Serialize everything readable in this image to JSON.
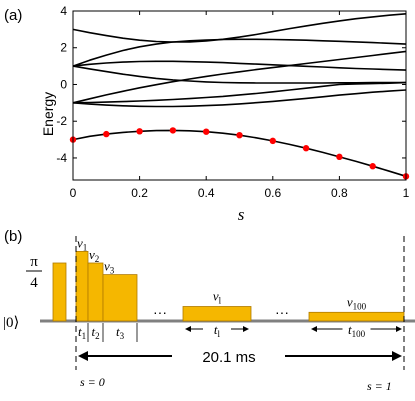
{
  "panel_a": {
    "label": "(a)",
    "chart_data": {
      "type": "line",
      "xlabel": "s",
      "ylabel": "Energy",
      "xlim": [
        0,
        1
      ],
      "ylim": [
        -5.2,
        4
      ],
      "xticks": [
        0,
        0.2,
        0.4,
        0.6,
        0.8,
        1
      ],
      "xtick_labels": [
        "0",
        "0.2",
        "0.4",
        "0.6",
        "0.8",
        "1"
      ],
      "yticks": [
        -4,
        -2,
        0,
        2,
        4
      ],
      "ytick_labels": [
        "-4",
        "-2",
        "0",
        "2",
        "4"
      ],
      "grid": false,
      "line_color": "#000000",
      "marker_color": "#ff0000",
      "x": [
        0,
        0.05,
        0.1,
        0.15,
        0.2,
        0.25,
        0.3,
        0.35,
        0.4,
        0.45,
        0.5,
        0.55,
        0.6,
        0.65,
        0.7,
        0.75,
        0.8,
        0.85,
        0.9,
        0.95,
        1
      ],
      "series": [
        {
          "values": [
            3.0,
            2.82,
            2.66,
            2.52,
            2.41,
            2.34,
            2.31,
            2.32,
            2.37,
            2.46,
            2.58,
            2.72,
            2.88,
            3.04,
            3.19,
            3.33,
            3.46,
            3.58,
            3.68,
            3.77,
            3.85
          ]
        },
        {
          "values": [
            1.0,
            1.32,
            1.6,
            1.85,
            2.05,
            2.2,
            2.31,
            2.38,
            2.42,
            2.45,
            2.46,
            2.46,
            2.45,
            2.43,
            2.41,
            2.38,
            2.35,
            2.32,
            2.28,
            2.24,
            2.2
          ]
        },
        {
          "values": [
            1.0,
            1.1,
            1.17,
            1.22,
            1.25,
            1.26,
            1.26,
            1.24,
            1.22,
            1.19,
            1.15,
            1.11,
            1.07,
            1.03,
            0.99,
            0.95,
            0.91,
            0.87,
            0.84,
            0.81,
            0.78
          ]
        },
        {
          "values": [
            1.0,
            0.85,
            0.7,
            0.56,
            0.44,
            0.33,
            0.25,
            0.19,
            0.14,
            0.11,
            0.09,
            0.08,
            0.08,
            0.08,
            0.08,
            0.08,
            0.09,
            0.09,
            0.1,
            0.1,
            0.1
          ]
        },
        {
          "values": [
            -1.0,
            -0.78,
            -0.57,
            -0.37,
            -0.18,
            -0.01,
            0.15,
            0.3,
            0.44,
            0.57,
            0.69,
            0.81,
            0.92,
            1.03,
            1.14,
            1.25,
            1.36,
            1.47,
            1.58,
            1.69,
            1.8
          ]
        },
        {
          "values": [
            -1.0,
            -0.98,
            -0.96,
            -0.93,
            -0.9,
            -0.86,
            -0.82,
            -0.77,
            -0.71,
            -0.65,
            -0.57,
            -0.49,
            -0.4,
            -0.3,
            -0.2,
            -0.1,
            0.0,
            0.03,
            0.05,
            0.07,
            0.1
          ]
        },
        {
          "values": [
            -1.0,
            -1.07,
            -1.12,
            -1.16,
            -1.19,
            -1.2,
            -1.2,
            -1.18,
            -1.15,
            -1.11,
            -1.06,
            -0.99,
            -0.92,
            -0.84,
            -0.76,
            -0.67,
            -0.58,
            -0.5,
            -0.42,
            -0.36,
            -0.3
          ]
        },
        {
          "values": [
            -3.0,
            -2.82,
            -2.7,
            -2.61,
            -2.55,
            -2.51,
            -2.5,
            -2.52,
            -2.57,
            -2.65,
            -2.76,
            -2.9,
            -3.07,
            -3.26,
            -3.47,
            -3.7,
            -3.94,
            -4.19,
            -4.45,
            -4.72,
            -5.0
          ]
        }
      ],
      "markers": {
        "x": [
          0,
          0.1,
          0.2,
          0.3,
          0.4,
          0.5,
          0.6,
          0.7,
          0.8,
          0.9,
          1
        ],
        "y": [
          -3.0,
          -2.7,
          -2.55,
          -2.5,
          -2.57,
          -2.76,
          -3.07,
          -3.47,
          -3.94,
          -4.45,
          -5.0
        ]
      }
    }
  },
  "panel_b": {
    "label": "(b)",
    "pi_label": "π",
    "four_label": "4",
    "ket_label": "|0⟩",
    "bar_color": "#f5b700",
    "bar_stroke": "#b07a00",
    "baseline_color": "#808080",
    "ref_level": 1.0,
    "pulses": [
      {
        "amp_label": "v",
        "amp_sub": "1",
        "dur_label": "t",
        "dur_sub": "1",
        "level": 1.2
      },
      {
        "amp_label": "v",
        "amp_sub": "2",
        "dur_label": "t",
        "dur_sub": "2",
        "level": 1.0
      },
      {
        "amp_label": "v",
        "amp_sub": "3",
        "dur_label": "t",
        "dur_sub": "3",
        "level": 0.8
      },
      {
        "amp_label": "v",
        "amp_sub": "l",
        "dur_label": "t",
        "dur_sub": "l",
        "level": 0.25
      },
      {
        "amp_label": "v",
        "amp_sub": "100",
        "dur_label": "t",
        "dur_sub": "100",
        "level": 0.15
      }
    ],
    "ellipsis_1": "···",
    "ellipsis_2": "···",
    "total_time": "20.1 ms",
    "s_start": "s = 0",
    "s_end": "s = 1"
  }
}
